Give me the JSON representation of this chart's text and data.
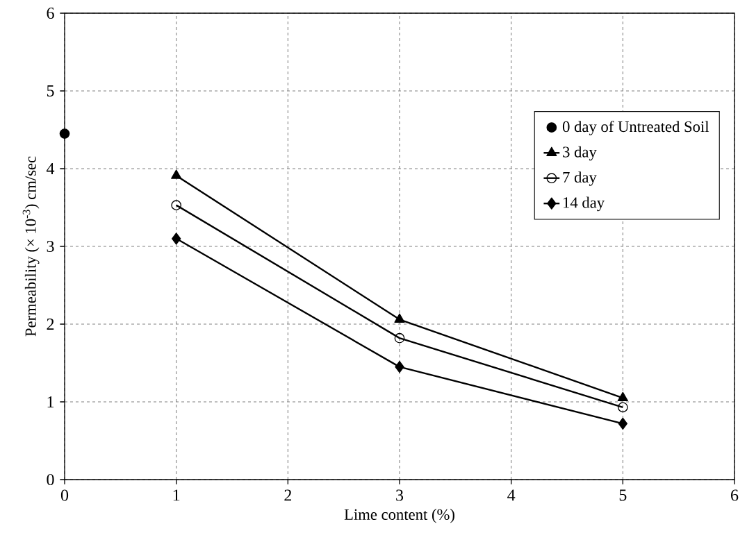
{
  "chart_data": {
    "type": "line",
    "xlabel": "Lime content (%)",
    "ylabel": "Permeability (× 10$^{-3}$) cm/sec",
    "xlim": [
      0,
      6
    ],
    "ylim": [
      0,
      6
    ],
    "xticks": [
      0,
      1,
      2,
      3,
      4,
      5,
      6
    ],
    "yticks": [
      0,
      1,
      2,
      3,
      4,
      5,
      6
    ],
    "grid": true,
    "legend": "top right",
    "line_style": "solid",
    "series": [
      {
        "name": "0 day of Untreated Soil",
        "type": "scatter",
        "marker": "circle",
        "color": "#000000",
        "x": [
          0
        ],
        "values": [
          4.45
        ]
      },
      {
        "name": "3 day",
        "marker": "triangle",
        "color": "#000000",
        "x": [
          1,
          3,
          5
        ],
        "values": [
          3.91,
          2.06,
          1.05
        ]
      },
      {
        "name": "7 day",
        "marker": "circle",
        "color": "#000000",
        "x": [
          1,
          3,
          5
        ],
        "values": [
          3.53,
          1.82,
          0.93
        ]
      },
      {
        "name": "14 day",
        "marker": "diamond",
        "color": "#000000",
        "x": [
          1,
          3,
          5
        ],
        "values": [
          3.1,
          1.45,
          0.72
        ]
      }
    ]
  }
}
